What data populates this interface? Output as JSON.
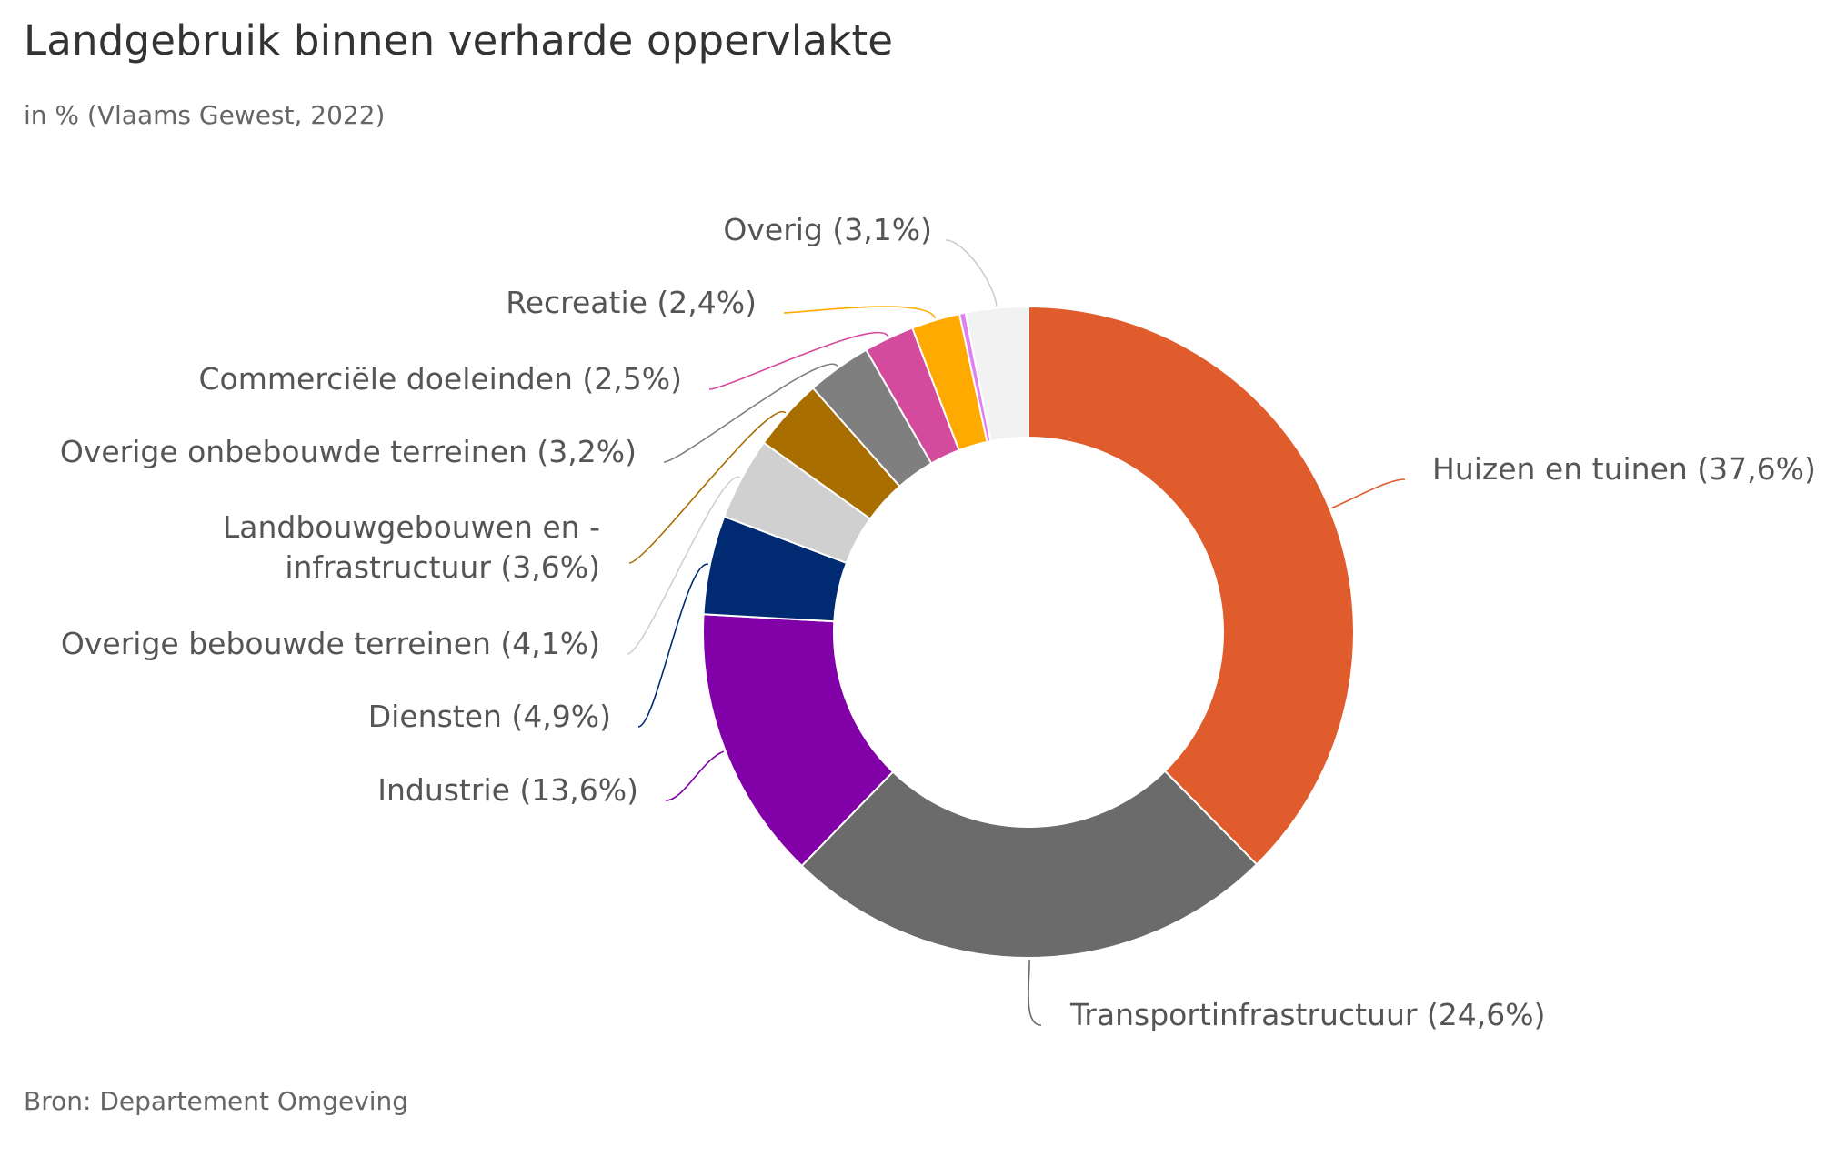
{
  "header": {
    "title": "Landgebruik binnen verharde oppervlakte",
    "subtitle": "in % (Vlaams Gewest, 2022)"
  },
  "footer": {
    "source": "Bron: Departement Omgeving"
  },
  "chart_data": {
    "type": "pie",
    "variant": "donut",
    "title": "Landgebruik binnen verharde oppervlakte",
    "subtitle": "in % (Vlaams Gewest, 2022)",
    "unit": "%",
    "slices": [
      {
        "label": "Huizen en tuinen",
        "value": 37.6,
        "display": "Huizen en tuinen (37,6%)",
        "color": "#e05c2c"
      },
      {
        "label": "Transportinfrastructuur",
        "value": 24.6,
        "display": "Transportinfrastructuur (24,6%)",
        "color": "#6b6b6b"
      },
      {
        "label": "Industrie",
        "value": 13.6,
        "display": "Industrie (13,6%)",
        "color": "#8200a8"
      },
      {
        "label": "Diensten",
        "value": 4.9,
        "display": "Diensten (4,9%)",
        "color": "#002a72"
      },
      {
        "label": "Overige bebouwde terreinen",
        "value": 4.1,
        "display": "Overige bebouwde terreinen (4,1%)",
        "color": "#d0d0d0"
      },
      {
        "label": "Landbouwgebouwen en -infrastructuur",
        "value": 3.6,
        "display": [
          "Landbouwgebouwen en -",
          "infrastructuur (3,6%)"
        ],
        "color": "#a86e00"
      },
      {
        "label": "Overige onbebouwde terreinen",
        "value": 3.2,
        "display": "Overige onbebouwde terreinen (3,2%)",
        "color": "#7f7f7f"
      },
      {
        "label": "Commerciële doeleinden",
        "value": 2.5,
        "display": "Commerciële doeleinden (2,5%)",
        "color": "#d44a9c"
      },
      {
        "label": "Recreatie",
        "value": 2.4,
        "display": "Recreatie (2,4%)",
        "color": "#ffaa00"
      },
      {
        "label": "",
        "value": 0.3,
        "display": "",
        "color": "#e080f0"
      },
      {
        "label": "Overig",
        "value": 3.1,
        "display": "Overig (3,1%)",
        "color": "#f2f2f2"
      }
    ]
  }
}
